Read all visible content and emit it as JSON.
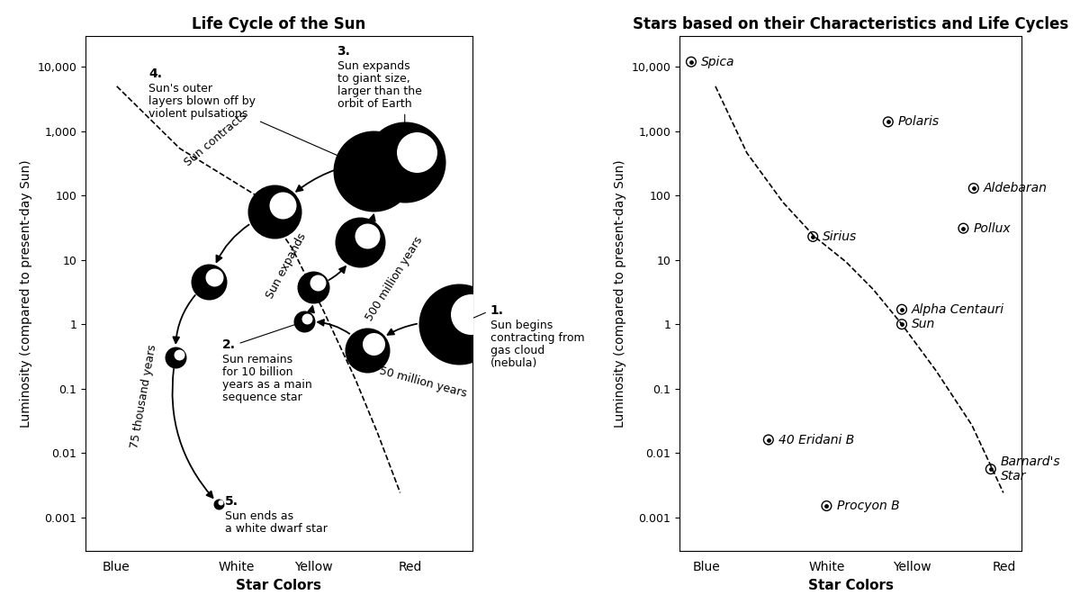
{
  "chart_data": [
    {
      "type": "lifecycle",
      "title": "Life Cycle of the Sun",
      "x_label": "Star Colors",
      "y_label": "Luminosity (compared to present-day Sun)",
      "log": "y",
      "grid": false,
      "xlim": [
        0,
        10
      ],
      "ylim": [
        0.0003,
        30000
      ],
      "xticks": [
        {
          "value": 0.8,
          "label": "Blue"
        },
        {
          "value": 3.9,
          "label": "White"
        },
        {
          "value": 5.9,
          "label": "Yellow"
        },
        {
          "value": 8.4,
          "label": "Red"
        }
      ],
      "yticks": [
        0.001,
        0.01,
        0.1,
        1,
        10,
        100,
        {
          "value": 1000,
          "label": "1,000"
        },
        {
          "value": 10000,
          "label": "10,000"
        }
      ],
      "color": "#000000",
      "x": [
        9.65,
        7.28,
        5.65,
        5.88,
        7.09,
        7.44,
        8.26,
        4.88,
        3.19,
        2.33,
        3.44
      ],
      "values": [
        1,
        0.4,
        1.1,
        3.8,
        19,
        240,
        330,
        56,
        4.6,
        0.31,
        0.0016
      ],
      "sizes": [
        45,
        25,
        12,
        18,
        28,
        45,
        45,
        30,
        20,
        12,
        6
      ],
      "main_sequence": {
        "x": [
          0.81,
          2.44,
          4.42,
          5.35,
          6.16,
          6.98,
          7.56,
          8.14
        ],
        "values": [
          5000,
          540,
          100,
          15,
          1.6,
          0.14,
          0.02,
          0.0024
        ],
        "line_style": "dashed"
      },
      "path_labels": [
        "Sun contracts",
        "Sun expands",
        "500 million years",
        "50 million years",
        "75 thousand years"
      ],
      "annotations": [
        {
          "label": "1.",
          "text": "Sun begins\ncontracting from\ngas cloud\n(nebula)"
        },
        {
          "label": "2.",
          "text": "Sun remains\nfor 10 billion\nyears as a main\nsequence star"
        },
        {
          "label": "3.",
          "text": "Sun expands\nto giant size,\nlarger than the\norbit of Earth"
        },
        {
          "label": "4.",
          "text": "Sun's outer\nlayers blown off by\nviolent pulsations"
        },
        {
          "label": "5.",
          "text": "Sun ends as\na white dwarf star"
        }
      ]
    },
    {
      "type": "scatter",
      "title": "Stars based on their Characteristics and Life Cycles",
      "x_label": "Star Colors",
      "y_label": "Luminosity (compared to present-day Sun)",
      "log": "y",
      "grid": false,
      "xlim": [
        0,
        10
      ],
      "ylim": [
        0.0003,
        30000
      ],
      "xticks": [
        {
          "value": 0.8,
          "label": "Blue"
        },
        {
          "value": 4.3,
          "label": "White"
        },
        {
          "value": 6.8,
          "label": "Yellow"
        },
        {
          "value": 9.5,
          "label": "Red"
        }
      ],
      "yticks": [
        0.001,
        0.01,
        0.1,
        1,
        10,
        100,
        {
          "value": 1000,
          "label": "1,000"
        },
        {
          "value": 10000,
          "label": "10,000"
        }
      ],
      "color": "#000000",
      "marker": "o",
      "names": [
        "Spica",
        "Polaris",
        "Aldebaran",
        "Pollux",
        "Sirius",
        "Alpha Centauri",
        "Sun",
        "40 Eridani B",
        "Procyon B",
        "Barnard's\nStar"
      ],
      "x": [
        0.34,
        6.1,
        8.6,
        8.3,
        3.9,
        6.5,
        6.5,
        2.6,
        4.3,
        9.1
      ],
      "values": [
        12000,
        1400,
        130,
        31,
        23,
        1.7,
        1,
        0.016,
        0.0015,
        0.0056
      ],
      "main_sequence": {
        "x": [
          1.05,
          1.97,
          3.03,
          3.95,
          4.87,
          5.66,
          6.5,
          7.5,
          8.55,
          9.47
        ],
        "values": [
          5000,
          460,
          78,
          23,
          9.3,
          3.5,
          1,
          0.19,
          0.027,
          0.0024
        ],
        "line_style": "dashed"
      }
    }
  ]
}
